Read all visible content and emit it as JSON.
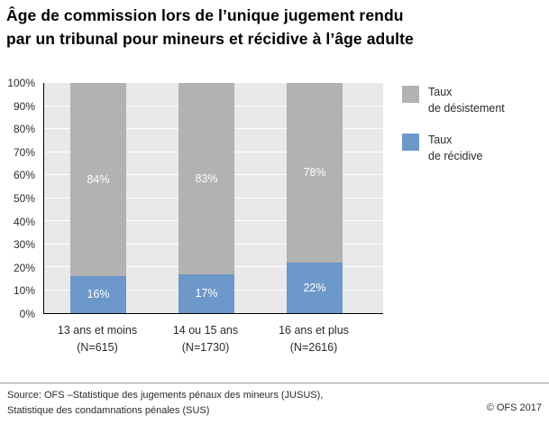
{
  "title": {
    "line1": "Âge de commission lors de l’unique jugement rendu",
    "line2": "par un tribunal pour mineurs et récidive à l’âge adulte"
  },
  "legend": {
    "items": [
      {
        "lines": [
          "Taux",
          "de désistement"
        ]
      },
      {
        "lines": [
          "Taux",
          "de récidive"
        ]
      }
    ]
  },
  "chart_data": {
    "type": "bar",
    "variant": "stacked-100-percent-column",
    "title": "Âge de commission lors de l’unique jugement rendu par un tribunal pour mineurs et récidive à l’âge adulte",
    "categories": [
      "13 ans et moins",
      "14 ou 15 ans",
      "16 ans et plus"
    ],
    "category_sublabels": [
      "(N=615)",
      "(N=1730)",
      "(N=2616)"
    ],
    "series": [
      {
        "name": "Taux de désistement",
        "key": "desistement",
        "color": "#b2b2b2",
        "values": [
          84,
          83,
          78
        ]
      },
      {
        "name": "Taux de récidive",
        "key": "recidive",
        "color": "#6d98ca",
        "values": [
          16,
          17,
          22
        ]
      }
    ],
    "ylim": [
      0,
      100
    ],
    "ytick_step": 10,
    "ytick_suffix": "%",
    "value_label_suffix": "%",
    "grid": true,
    "grid_color": "#ffffff",
    "plot_bg": "#e9e9e9",
    "legend_position": "top-right"
  },
  "footer": {
    "source_line1": "Source: OFS –Statistique des jugements pénaux des mineurs (JUSUS),",
    "source_line2": "Statistique des condamnations pénales (SUS)",
    "copyright": "© OFS 2017"
  }
}
